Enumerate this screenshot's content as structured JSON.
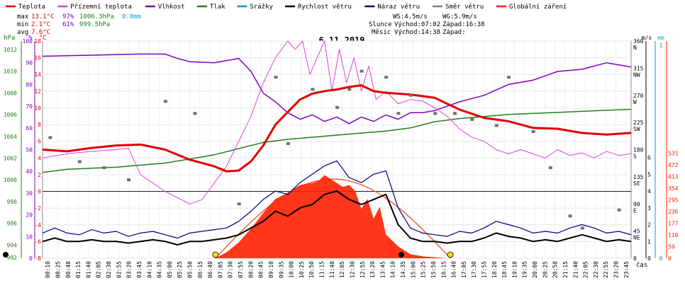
{
  "chart_data": {
    "type": "line",
    "title": "6.11.2019",
    "legend": [
      {
        "name": "Teplota",
        "color": "#e00000"
      },
      {
        "name": "Přízemní teplota",
        "color": "#e040e0"
      },
      {
        "name": "Vlhkost",
        "color": "#8000c0"
      },
      {
        "name": "Tlak",
        "color": "#208020"
      },
      {
        "name": "Srážky",
        "color": "#00a0d0"
      },
      {
        "name": "Rychlost větru",
        "color": "#000000"
      },
      {
        "name": "Náraz větru",
        "color": "#000080"
      },
      {
        "name": "Směr větru",
        "color": "#808080"
      },
      {
        "name": "Globální záření",
        "color": "#ff2000"
      }
    ],
    "stats": {
      "max": {
        "label": "max",
        "temp": "13.1°C",
        "hum": "97%",
        "press": "1006.3hPa",
        "rain": "0.0mm"
      },
      "min": {
        "label": "min",
        "temp": "2.1°C",
        "hum": "61%",
        "press": "999.5hPa"
      },
      "avg": {
        "label": "avg",
        "temp": "7.6°C"
      }
    },
    "wind_info": {
      "ws": "WS:4.5m/s",
      "wg": "WG:5.9m/s"
    },
    "sun_info": {
      "label": "Slunce",
      "rise": "Východ:07:02",
      "set": "Západ:16:38"
    },
    "moon_info": {
      "label": "Měsíc",
      "rise": "Východ:14:38",
      "set": "Západ:"
    },
    "axes": {
      "hpa": {
        "unit": "hPa",
        "ticks": [
          "1012",
          "1010",
          "1008",
          "1006",
          "1004",
          "1002",
          "1000",
          "998",
          "996",
          "994",
          "992"
        ]
      },
      "pct": {
        "unit": "%",
        "ticks": [
          "100",
          "90",
          "80",
          "70",
          "60",
          "50",
          "40",
          "30",
          "20",
          "10",
          "0"
        ]
      },
      "degc": {
        "unit": "°C",
        "ticks": [
          "18",
          "16",
          "14",
          "12",
          "10",
          "8",
          "6",
          "4",
          "2",
          "0",
          "-2",
          "-4",
          "-6",
          "-8"
        ]
      },
      "dir": {
        "unit": "m/s",
        "ticks": [
          "360\nN",
          "315\nNW",
          "270\nW",
          "225\nSW",
          "180\nS",
          "135\nSE",
          "90\nE",
          "45\nNE",
          "0"
        ]
      },
      "ms": {
        "ticks": [
          "6",
          "5",
          "4",
          "3",
          "2",
          "1",
          "0"
        ]
      },
      "mm": {
        "unit": "mm",
        "ticks": [
          "1",
          "0"
        ]
      },
      "rad": {
        "ticks": [
          "531",
          "472",
          "413",
          "354",
          "295",
          "236",
          "177",
          "118",
          "59",
          "0"
        ]
      },
      "x_label": "čas"
    },
    "x_ticks": [
      "00:10",
      "00:25",
      "00:40",
      "01:15",
      "01:40",
      "02:05",
      "02:30",
      "02:55",
      "03:20",
      "03:45",
      "04:10",
      "04:35",
      "05:00",
      "05:25",
      "05:50",
      "06:15",
      "06:40",
      "07:05",
      "07:30",
      "07:55",
      "08:20",
      "08:45",
      "09:10",
      "09:35",
      "10:00",
      "10:25",
      "10:50",
      "11:15",
      "11:40",
      "12:05",
      "12:30",
      "12:55",
      "13:20",
      "13:45",
      "14:10",
      "14:35",
      "15:00",
      "15:25",
      "15:50",
      "16:15",
      "16:40",
      "17:05",
      "17:30",
      "17:55",
      "18:20",
      "18:45",
      "19:10",
      "19:35",
      "20:00",
      "20:25",
      "20:50",
      "21:15",
      "21:40",
      "22:05",
      "22:30",
      "22:55",
      "23:20",
      "23:45"
    ],
    "series": {
      "temp_x": [
        0,
        1,
        2,
        3,
        4,
        5,
        6,
        7,
        7.5,
        8,
        8.5,
        9,
        9.5,
        10,
        10.5,
        11,
        11.5,
        12,
        12.5,
        13,
        13.5,
        14,
        14.5,
        15,
        15.5,
        16,
        16.5,
        17,
        18,
        19,
        20,
        21,
        22,
        23,
        24
      ],
      "temp_y": [
        5,
        4.8,
        5.2,
        5.5,
        5.6,
        5,
        3.8,
        3,
        2.4,
        2.5,
        3.6,
        5.5,
        8,
        9.5,
        11,
        11.7,
        12,
        12.2,
        12.5,
        12.7,
        12,
        11.8,
        11.7,
        11.6,
        11.4,
        11.2,
        10.5,
        9.8,
        8.8,
        8.4,
        7.6,
        7.5,
        7,
        6.8,
        7
      ],
      "hum_x": [
        0,
        2,
        4,
        5,
        5.5,
        6,
        7,
        7.5,
        8,
        8.5,
        9,
        9.5,
        10,
        10.5,
        11,
        11.5,
        12,
        12.5,
        13,
        13.5,
        14,
        14.5,
        15,
        15.5,
        16,
        16.5,
        17,
        18,
        19,
        20,
        21,
        22,
        23,
        24
      ],
      "hum_y": [
        93,
        93.5,
        94,
        94,
        92,
        90.5,
        90,
        91,
        92,
        86,
        76,
        72,
        67,
        64,
        66,
        63,
        65,
        62,
        65,
        63,
        66,
        64,
        67,
        67,
        68,
        70,
        72,
        75,
        80,
        82,
        86,
        87,
        90,
        88
      ],
      "press_x": [
        0,
        1,
        2,
        3,
        4,
        5,
        6,
        7,
        8,
        9,
        10,
        11,
        12,
        13,
        14,
        15,
        16,
        17,
        18,
        19,
        20,
        21,
        22,
        23,
        24
      ],
      "press_y": [
        1000.3,
        1000.6,
        1000.7,
        1000.8,
        1001,
        1001.2,
        1001.6,
        1002,
        1002.6,
        1003.2,
        1003.5,
        1003.7,
        1003.9,
        1004.1,
        1004.3,
        1004.6,
        1005.2,
        1005.5,
        1005.7,
        1005.9,
        1006.0,
        1006.1,
        1006.2,
        1006.3,
        1006.4
      ],
      "gtemp_x": [
        0,
        1,
        2,
        3,
        3.5,
        4,
        5,
        6,
        6.5,
        7,
        7.5,
        8,
        8.5,
        9,
        9.5,
        10,
        10.3,
        10.6,
        10.9,
        11.2,
        11.5,
        11.8,
        12.1,
        12.4,
        12.7,
        13,
        13.3,
        13.6,
        14,
        14.5,
        15,
        15.5,
        16,
        16.5,
        17,
        17.5,
        18,
        18.5,
        19,
        19.5,
        20,
        20.5,
        21,
        21.5,
        22,
        22.5,
        23,
        23.5,
        24
      ],
      "gtemp_y": [
        4,
        4.5,
        4.8,
        5,
        5.2,
        2,
        0,
        -1.5,
        -1,
        1,
        3,
        6,
        9,
        13,
        16,
        18,
        17,
        18,
        14,
        16,
        18,
        12,
        17,
        13,
        16,
        12,
        15,
        11,
        12,
        10.5,
        11,
        10.8,
        10,
        9,
        7.5,
        6.5,
        6,
        5,
        4.5,
        5,
        4.5,
        4,
        5,
        4.3,
        4.6,
        4,
        4.8,
        4.3,
        4.5
      ],
      "wind_ms_x": [
        0,
        0.5,
        1,
        1.5,
        2,
        2.5,
        3,
        3.5,
        4,
        4.5,
        5,
        5.5,
        6,
        6.5,
        7,
        7.5,
        8,
        8.5,
        9,
        9.5,
        10,
        10.5,
        11,
        11.5,
        12,
        12.5,
        13,
        13.5,
        14,
        14.5,
        15,
        15.5,
        16,
        16.5,
        17,
        17.5,
        18,
        18.5,
        19,
        19.5,
        20,
        20.5,
        21,
        21.5,
        22,
        22.5,
        23,
        23.5,
        24
      ],
      "wind_ms_y": [
        1,
        1.2,
        1,
        1,
        1.1,
        1,
        1,
        0.9,
        1,
        1.1,
        1,
        0.8,
        1,
        1,
        1.1,
        1.2,
        1.4,
        1.8,
        2.2,
        2.8,
        2.5,
        3,
        3.2,
        3.8,
        4,
        3.5,
        3.2,
        3.5,
        3.8,
        2,
        1.2,
        1,
        1,
        0.9,
        1,
        1,
        1.2,
        1.5,
        1.3,
        1.2,
        1,
        1.1,
        1,
        1.2,
        1.4,
        1.2,
        1,
        1.1,
        1
      ],
      "gust_ms_x": [
        0,
        0.5,
        1,
        1.5,
        2,
        2.5,
        3,
        3.5,
        4,
        4.5,
        5,
        5.5,
        6,
        6.5,
        7,
        7.5,
        8,
        8.5,
        9,
        9.5,
        10,
        10.5,
        11,
        11.5,
        12,
        12.5,
        13,
        13.5,
        14,
        14.5,
        15,
        15.5,
        16,
        16.5,
        17,
        17.5,
        18,
        18.5,
        19,
        19.5,
        20,
        20.5,
        21,
        21.5,
        22,
        22.5,
        23,
        23.5,
        24
      ],
      "gust_ms_y": [
        1.5,
        1.8,
        1.5,
        1.4,
        1.7,
        1.5,
        1.6,
        1.3,
        1.5,
        1.6,
        1.4,
        1.2,
        1.5,
        1.6,
        1.7,
        1.8,
        2.2,
        2.8,
        3.5,
        4,
        3.8,
        4.5,
        5,
        5.5,
        5.8,
        4.8,
        4.5,
        5,
        5.2,
        3,
        1.8,
        1.5,
        1.4,
        1.3,
        1.6,
        1.5,
        1.8,
        2.2,
        2,
        1.8,
        1.5,
        1.6,
        1.5,
        1.8,
        2,
        1.8,
        1.5,
        1.6,
        1.4
      ],
      "radiation_x": [
        7.05,
        7.5,
        8,
        8.5,
        9,
        9.5,
        10,
        10.5,
        11,
        11.25,
        11.5,
        11.75,
        12,
        12.25,
        12.5,
        12.75,
        13,
        13.25,
        13.5,
        13.75,
        14,
        14.5,
        15,
        15.5,
        16,
        16.5
      ],
      "radiation_y": [
        0,
        30,
        80,
        150,
        230,
        300,
        330,
        370,
        380,
        390,
        420,
        400,
        380,
        360,
        370,
        340,
        250,
        300,
        200,
        260,
        120,
        60,
        20,
        10,
        5,
        0
      ],
      "dir_points": [
        [
          0.3,
          200
        ],
        [
          1.5,
          160
        ],
        [
          2.5,
          150
        ],
        [
          3.5,
          130
        ],
        [
          5,
          260
        ],
        [
          6.2,
          240
        ],
        [
          8,
          90
        ],
        [
          9.5,
          300
        ],
        [
          10,
          190
        ],
        [
          11,
          280
        ],
        [
          12,
          250
        ],
        [
          12.5,
          280
        ],
        [
          13,
          310
        ],
        [
          14,
          300
        ],
        [
          14.5,
          240
        ],
        [
          15,
          270
        ],
        [
          16,
          240
        ],
        [
          16.8,
          240
        ],
        [
          17.5,
          230
        ],
        [
          18.5,
          220
        ],
        [
          19,
          300
        ],
        [
          20,
          210
        ],
        [
          20.7,
          150
        ],
        [
          21.5,
          70
        ],
        [
          22,
          50
        ],
        [
          23.5,
          80
        ]
      ]
    }
  }
}
